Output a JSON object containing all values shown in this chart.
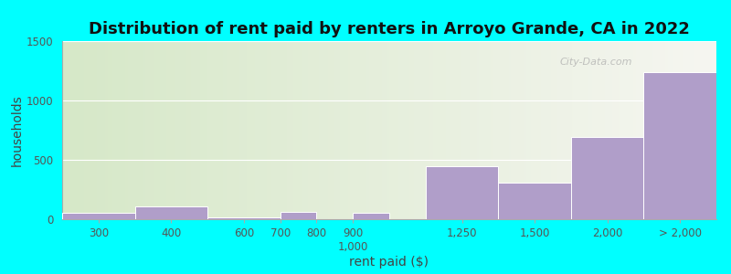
{
  "title": "Distribution of rent paid by renters in Arroyo Grande, CA in 2022",
  "xlabel": "rent paid ($)",
  "ylabel": "households",
  "background_outer": "#00FFFF",
  "bar_color": "#b09ec9",
  "bar_edge_color": "#ffffff",
  "ylim": [
    0,
    1500
  ],
  "yticks": [
    0,
    500,
    1000,
    1500
  ],
  "values": [
    55,
    110,
    15,
    60,
    55,
    450,
    310,
    690,
    1240
  ],
  "left_edges": [
    0,
    1,
    2,
    3,
    4,
    5,
    6,
    7,
    8
  ],
  "widths": [
    1,
    1,
    1,
    0.5,
    0.5,
    1,
    1,
    1,
    1
  ],
  "tick_positions": [
    0.5,
    1.5,
    2.5,
    3.0,
    3.5,
    4.0,
    5.5,
    6.5,
    7.5,
    8.5
  ],
  "tick_labels": [
    "300",
    "400",
    "600",
    "700",
    "800",
    "900\n1,000",
    "1,250",
    "1,500",
    "2,000",
    "> 2,000"
  ],
  "watermark": "City-Data.com",
  "title_fontsize": 13,
  "axis_label_fontsize": 10,
  "tick_fontsize": 8.5
}
